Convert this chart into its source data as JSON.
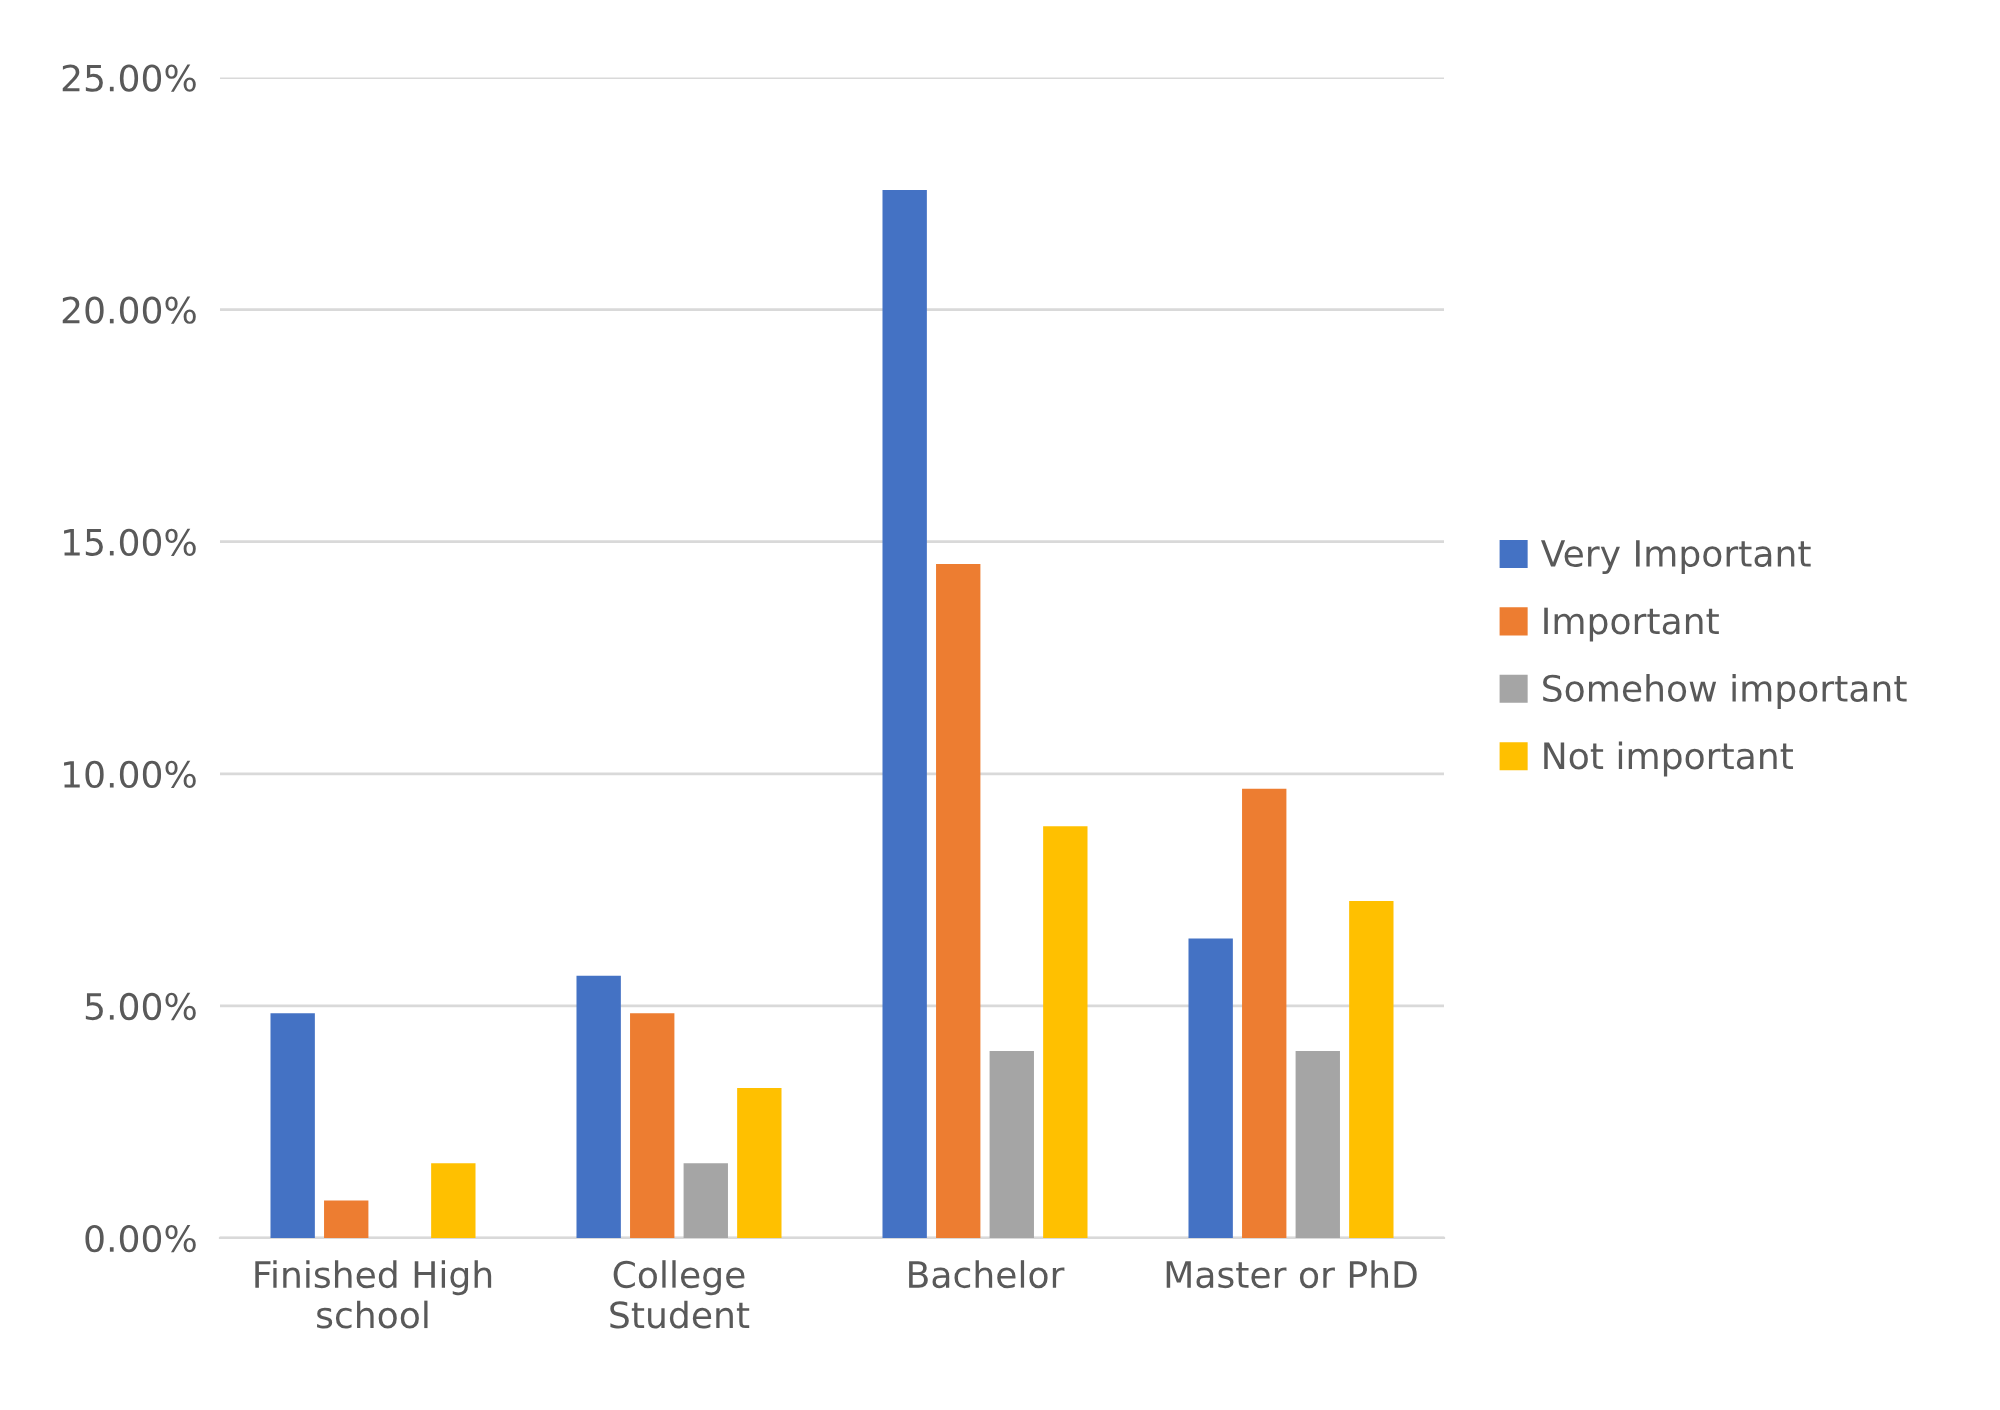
{
  "chart_data": {
    "type": "bar",
    "categories": [
      "Finished High school",
      "College Student",
      "Bachelor",
      "Master or PhD"
    ],
    "series": [
      {
        "name": "Very Important",
        "color": "#4472c4",
        "values": [
          4.84,
          5.65,
          22.58,
          6.45
        ]
      },
      {
        "name": "Important",
        "color": "#ed7d31",
        "values": [
          0.81,
          4.84,
          14.52,
          9.68
        ]
      },
      {
        "name": "Somehow important",
        "color": "#a5a5a5",
        "values": [
          0,
          1.61,
          4.03,
          4.03
        ]
      },
      {
        "name": "Not important",
        "color": "#ffc000",
        "values": [
          1.61,
          3.23,
          8.87,
          7.26
        ]
      }
    ],
    "ylim": [
      0,
      25
    ],
    "yticks": [
      {
        "value": 0,
        "label": "0.00%"
      },
      {
        "value": 5,
        "label": "5.00%"
      },
      {
        "value": 10,
        "label": "10.00%"
      },
      {
        "value": 15,
        "label": "15.00%"
      },
      {
        "value": 20,
        "label": "20.00%"
      },
      {
        "value": 25,
        "label": "25.00%"
      }
    ],
    "grid": "y",
    "legend": "right"
  }
}
